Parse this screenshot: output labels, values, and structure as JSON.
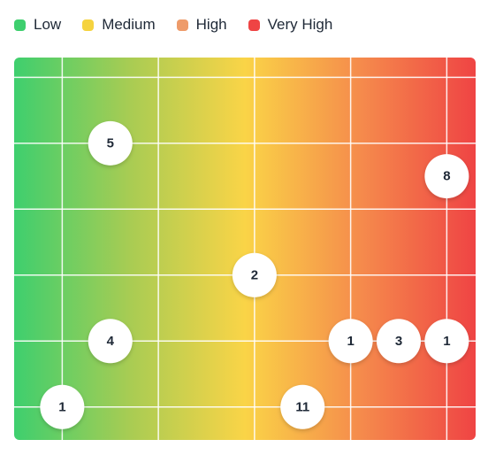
{
  "legend": [
    {
      "label": "Low",
      "color": "#3ecf6e"
    },
    {
      "label": "Medium",
      "color": "#f5d33f"
    },
    {
      "label": "High",
      "color": "#ee9b6a"
    },
    {
      "label": "Very High",
      "color": "#ef4444"
    }
  ],
  "chart_data": {
    "type": "scatter",
    "grid": true,
    "background_gradient": [
      "#3ecf6e",
      "#a8cc53",
      "#fad447",
      "#f58b4c",
      "#ef4444"
    ],
    "xlim": [
      0.5,
      5.3
    ],
    "ylim": [
      0.5,
      6.3
    ],
    "points": [
      {
        "x": 1.5,
        "y": 5,
        "label": "5"
      },
      {
        "x": 5,
        "y": 4.5,
        "label": "8"
      },
      {
        "x": 3,
        "y": 3,
        "label": "2"
      },
      {
        "x": 1.5,
        "y": 2,
        "label": "4"
      },
      {
        "x": 4,
        "y": 2,
        "label": "1"
      },
      {
        "x": 4.5,
        "y": 2,
        "label": "3"
      },
      {
        "x": 5,
        "y": 2,
        "label": "1"
      },
      {
        "x": 1,
        "y": 1,
        "label": "1"
      },
      {
        "x": 3.5,
        "y": 1,
        "label": "11"
      }
    ]
  }
}
